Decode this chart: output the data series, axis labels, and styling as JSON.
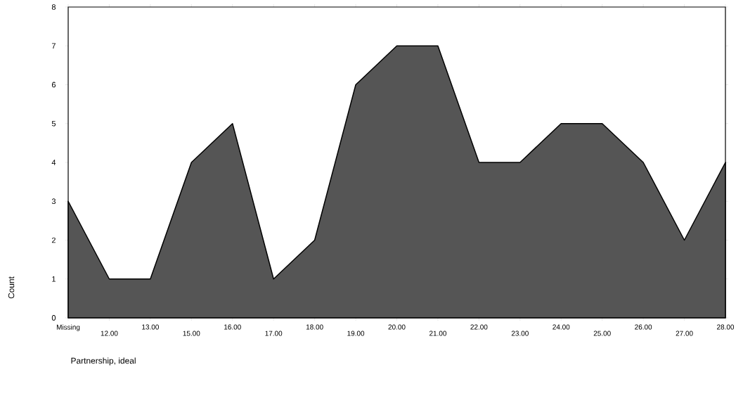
{
  "chart_data": {
    "type": "area",
    "categories": [
      "Missing",
      "12.00",
      "13.00",
      "15.00",
      "16.00",
      "17.00",
      "18.00",
      "19.00",
      "20.00",
      "21.00",
      "22.00",
      "23.00",
      "24.00",
      "25.00",
      "26.00",
      "27.00",
      "28.00"
    ],
    "values": [
      3,
      1,
      1,
      4,
      5,
      1,
      2,
      6,
      7,
      7,
      4,
      4,
      5,
      5,
      4,
      2,
      4
    ],
    "color": "#555555",
    "xlabel": "Partnership, ideal",
    "ylabel": "Count",
    "ylim": [
      0,
      8
    ],
    "yticks": [
      0,
      1,
      2,
      3,
      4,
      5,
      6,
      7,
      8
    ],
    "grid": false,
    "marker": "none"
  }
}
